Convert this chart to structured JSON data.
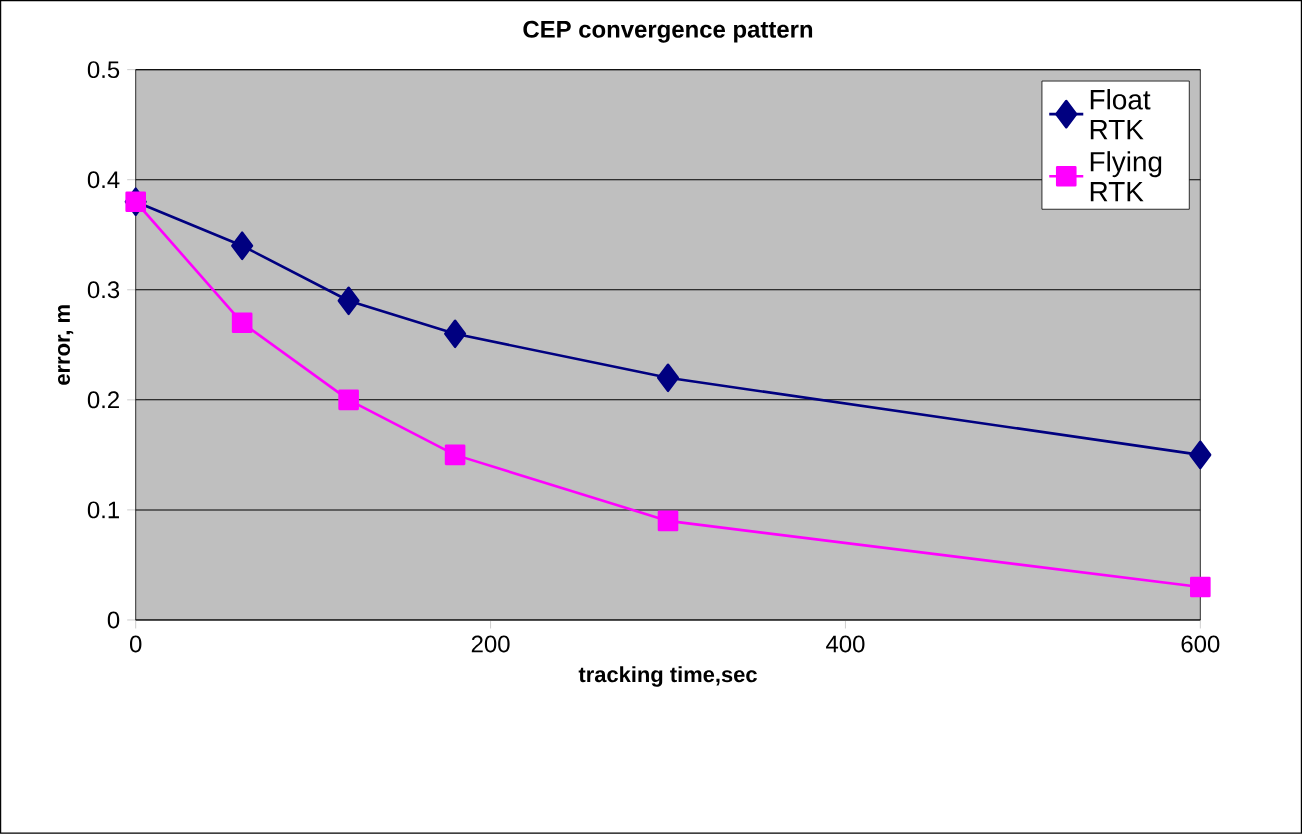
{
  "chart_data": {
    "type": "line",
    "title": "CEP convergence pattern",
    "xlabel": "tracking time,sec",
    "ylabel": "error, m",
    "xlim": [
      0,
      600
    ],
    "xticks": [
      0,
      200,
      400,
      600
    ],
    "ylim": [
      0,
      0.5
    ],
    "yticks": [
      0,
      0.1,
      0.2,
      0.3,
      0.4,
      0.5
    ],
    "grid": "y",
    "legend": "top right",
    "x": [
      0,
      60,
      120,
      180,
      300,
      600
    ],
    "series": [
      {
        "name": "Float RTK",
        "color": "#000080",
        "marker": "diamond",
        "values": [
          0.38,
          0.34,
          0.29,
          0.26,
          0.22,
          0.15
        ]
      },
      {
        "name": "Flying RTK",
        "color": "#ff00ff",
        "marker": "square",
        "values": [
          0.38,
          0.27,
          0.2,
          0.15,
          0.09,
          0.03
        ]
      }
    ]
  }
}
